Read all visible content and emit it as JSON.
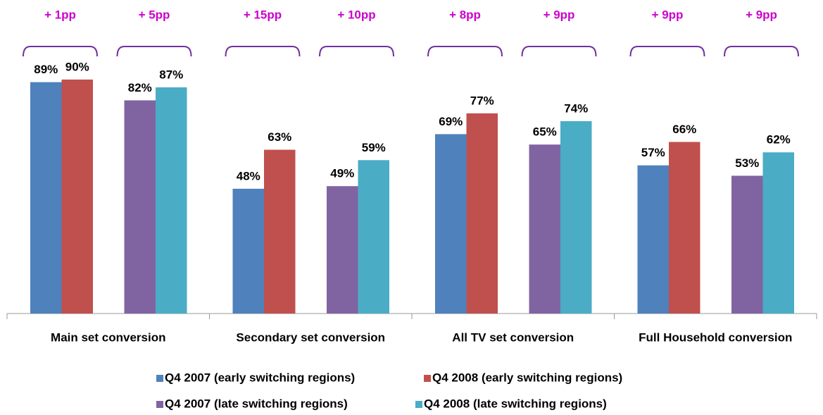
{
  "chart_data": {
    "type": "bar",
    "categories": [
      "Main set conversion",
      "Secondary set conversion",
      "All TV set conversion",
      "Full Household conversion"
    ],
    "series": [
      {
        "name": "Q4 2007 (early switching regions)",
        "color": "#4f81bd",
        "values": [
          89,
          48,
          69,
          57
        ],
        "value_labels": [
          "89%",
          "48%",
          "69%",
          "57%"
        ]
      },
      {
        "name": "Q4 2008 (early switching regions)",
        "color": "#c0504d",
        "values": [
          90,
          63,
          77,
          66
        ],
        "value_labels": [
          "90%",
          "63%",
          "77%",
          "66%"
        ]
      },
      {
        "name": "Q4 2007 (late switching regions)",
        "color": "#8064a2",
        "values": [
          82,
          49,
          65,
          53
        ],
        "value_labels": [
          "82%",
          "49%",
          "65%",
          "53%"
        ]
      },
      {
        "name": "Q4 2008 (late switching regions)",
        "color": "#4bacc6",
        "values": [
          87,
          59,
          74,
          62
        ],
        "value_labels": [
          "87%",
          "59%",
          "74%",
          "62%"
        ]
      }
    ],
    "annotations": [
      "+ 1pp",
      "+ 5pp",
      "+ 15pp",
      "+ 10pp",
      "+ 8pp",
      "+ 9pp",
      "+ 9pp",
      "+ 9pp"
    ],
    "ylim": [
      0,
      100
    ],
    "annotation_color": "#cc00cc",
    "bracket_color": "#7030a0"
  }
}
